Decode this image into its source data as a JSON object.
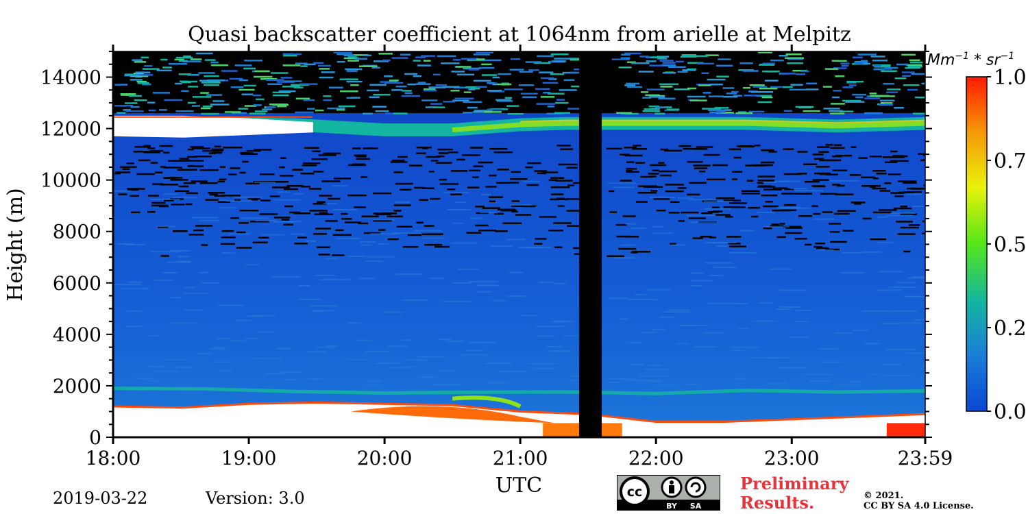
{
  "chart_data": {
    "type": "heatmap",
    "title": "Quasi backscatter coefficient at 1064nm from arielle at Melpitz",
    "xlabel": "UTC",
    "ylabel": "Height (m)",
    "x_ticks": [
      "18:00",
      "19:00",
      "20:00",
      "21:00",
      "22:00",
      "23:00",
      "23:59"
    ],
    "x_range": [
      "18:00",
      "23:59"
    ],
    "y_ticks": [
      0,
      2000,
      4000,
      6000,
      8000,
      10000,
      12000,
      14000
    ],
    "ylim": [
      0,
      15000
    ],
    "colorbar": {
      "label_base": "Mm",
      "label_exp1": "−1",
      "label_mid": " * sr",
      "label_exp2": "−1",
      "ticks": [
        "0.0",
        "0.2",
        "0.5",
        "0.7",
        "1.0"
      ],
      "tick_values": [
        0.0,
        0.25,
        0.5,
        0.75,
        1.0
      ],
      "range": [
        0.0,
        1.0
      ],
      "colormap": [
        "#0b47d4",
        "#1a7fd6",
        "#14b5a0",
        "#55e61a",
        "#e8f20a",
        "#f59b09",
        "#ff1a00"
      ]
    },
    "colors": {
      "background_signal": "#1455d2",
      "no_data": "#000000",
      "saturated": "#ffffff",
      "low_cloud_edge": "#ff4a0a"
    },
    "features": [
      {
        "name": "cirrus layer",
        "time_start": "18:00",
        "time_end": "23:59",
        "height_min": 11500,
        "height_max": 12500
      },
      {
        "name": "boundary layer top",
        "time_start": "18:00",
        "time_end": "23:59",
        "height_min": 1000,
        "height_max": 2000
      },
      {
        "name": "data gap",
        "time_start": "21:26",
        "time_end": "21:36"
      }
    ]
  },
  "footer": {
    "date": "2019-03-22",
    "version": "Version: 3.0",
    "preliminary_line1": "Preliminary",
    "preliminary_line2": "Results.",
    "copyright_line1": "©  2021.",
    "copyright_line2": "CC BY SA 4.0 License.",
    "license_badge": {
      "icon": "cc-by-sa-icon",
      "by": "BY",
      "sa": "SA",
      "cc": "cc"
    }
  }
}
